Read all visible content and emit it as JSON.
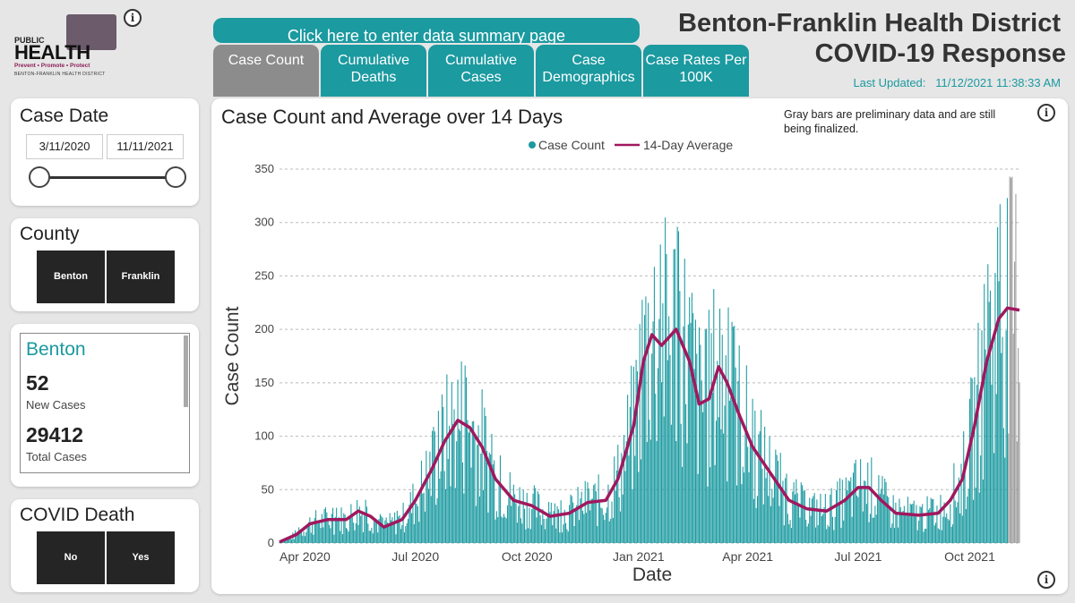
{
  "logo": {
    "public": "PUBLIC",
    "health": "HEALTH",
    "tagline": "Prevent • Promote • Protect",
    "district": "BENTON-FRANKLIN HEALTH DISTRICT"
  },
  "header": {
    "summary_button": "Click here to enter data summary page",
    "tabs": [
      {
        "label": "Case Count",
        "active": true
      },
      {
        "label": "Cumulative Deaths",
        "active": false
      },
      {
        "label": "Cumulative Cases",
        "active": false
      },
      {
        "label": "Case Demographics",
        "active": false
      },
      {
        "label": "Case Rates Per 100K",
        "active": false
      }
    ],
    "title_line1": "Benton-Franklin Health District",
    "title_line2": "COVID-19 Response",
    "last_updated_label": "Last Updated:",
    "last_updated_value": "11/12/2021 11:38:33 AM"
  },
  "info_icon": "i",
  "sidebar": {
    "case_date": {
      "title": "Case Date",
      "start": "3/11/2020",
      "end": "11/11/2021"
    },
    "county": {
      "title": "County",
      "options": [
        "Benton",
        "Franklin"
      ]
    },
    "summary": {
      "name": "Benton",
      "new_cases": "52",
      "new_cases_label": "New Cases",
      "total_cases": "29412",
      "total_cases_label": "Total Cases"
    },
    "covid_death": {
      "title": "COVID Death",
      "options": [
        "No",
        "Yes"
      ]
    }
  },
  "chart": {
    "title": "Case Count and Average over 14 Days",
    "note": "Gray bars are preliminary data and are still being finalized."
  },
  "colors": {
    "teal": "#1b9aa0",
    "magenta": "#a0185e",
    "gray_bar": "#9a9a9a",
    "dark_button": "#252525"
  },
  "chart_data": {
    "type": "bar",
    "title": "Case Count and Average over 14 Days",
    "xlabel": "Date",
    "ylabel": "Case Count",
    "ylim": [
      0,
      350
    ],
    "yticks": [
      0,
      50,
      100,
      150,
      200,
      250,
      300,
      350
    ],
    "xticks": [
      "Apr 2020",
      "Jul 2020",
      "Oct 2020",
      "Jan 2021",
      "Apr 2021",
      "Jul 2021",
      "Oct 2021"
    ],
    "x_start": "2020-03-11",
    "x_end": "2021-11-11",
    "grid": true,
    "legend_position": "top",
    "series": [
      {
        "name": "Case Count",
        "type": "bar",
        "color": "#1b9aa0",
        "description": "daily case counts; last ~10 days preliminary (gray)"
      },
      {
        "name": "14-Day Average",
        "type": "line",
        "color": "#a0185e"
      }
    ],
    "average_points": [
      [
        "2020-03-11",
        1
      ],
      [
        "2020-03-25",
        8
      ],
      [
        "2020-04-05",
        18
      ],
      [
        "2020-04-20",
        22
      ],
      [
        "2020-05-05",
        22
      ],
      [
        "2020-05-15",
        30
      ],
      [
        "2020-05-25",
        25
      ],
      [
        "2020-06-05",
        15
      ],
      [
        "2020-06-20",
        22
      ],
      [
        "2020-07-01",
        40
      ],
      [
        "2020-07-15",
        70
      ],
      [
        "2020-07-25",
        95
      ],
      [
        "2020-08-05",
        115
      ],
      [
        "2020-08-15",
        108
      ],
      [
        "2020-08-25",
        90
      ],
      [
        "2020-09-05",
        60
      ],
      [
        "2020-09-20",
        40
      ],
      [
        "2020-10-05",
        35
      ],
      [
        "2020-10-20",
        25
      ],
      [
        "2020-11-05",
        28
      ],
      [
        "2020-11-20",
        38
      ],
      [
        "2020-12-05",
        40
      ],
      [
        "2020-12-15",
        60
      ],
      [
        "2020-12-28",
        110
      ],
      [
        "2021-01-05",
        170
      ],
      [
        "2021-01-12",
        195
      ],
      [
        "2021-01-20",
        185
      ],
      [
        "2021-02-01",
        200
      ],
      [
        "2021-02-12",
        170
      ],
      [
        "2021-02-20",
        130
      ],
      [
        "2021-02-28",
        135
      ],
      [
        "2021-03-08",
        165
      ],
      [
        "2021-03-15",
        150
      ],
      [
        "2021-03-25",
        120
      ],
      [
        "2021-04-05",
        90
      ],
      [
        "2021-04-20",
        65
      ],
      [
        "2021-05-05",
        40
      ],
      [
        "2021-05-20",
        32
      ],
      [
        "2021-06-05",
        30
      ],
      [
        "2021-06-20",
        40
      ],
      [
        "2021-07-01",
        52
      ],
      [
        "2021-07-10",
        52
      ],
      [
        "2021-07-20",
        40
      ],
      [
        "2021-08-01",
        28
      ],
      [
        "2021-08-20",
        26
      ],
      [
        "2021-09-05",
        28
      ],
      [
        "2021-09-15",
        40
      ],
      [
        "2021-09-25",
        60
      ],
      [
        "2021-10-05",
        110
      ],
      [
        "2021-10-15",
        170
      ],
      [
        "2021-10-25",
        210
      ],
      [
        "2021-11-01",
        220
      ],
      [
        "2021-11-11",
        218
      ]
    ]
  }
}
